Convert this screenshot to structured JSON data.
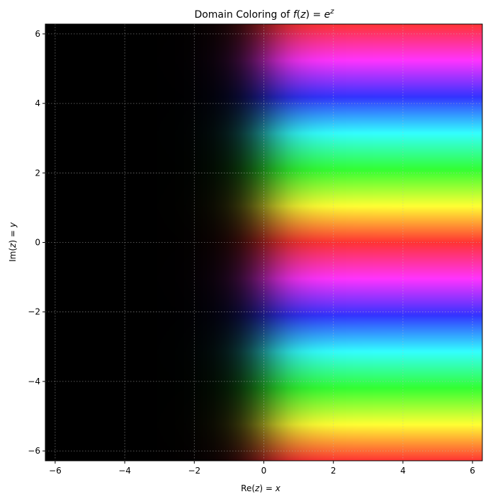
{
  "chart_data": {
    "type": "heatmap",
    "title": {
      "prefix": "Domain Coloring of ",
      "f": "f",
      "open": "(",
      "z": "z",
      "eq": ") = ",
      "e": "e",
      "sup": "z"
    },
    "xlabel": {
      "prefix": "Re(",
      "z": "z",
      "mid": ") = ",
      "var": "x"
    },
    "ylabel": {
      "prefix": "Im(",
      "z": "z",
      "mid": ") = ",
      "var": "y"
    },
    "function": "exp(z)",
    "coloring": {
      "hue": "arg(f(z))",
      "brightness": "increases with |f(z)|"
    },
    "xlim": [
      -6.283,
      6.283
    ],
    "ylim": [
      -6.283,
      6.283
    ],
    "xticks": [
      -6,
      -4,
      -2,
      0,
      2,
      4,
      6
    ],
    "yticks": [
      -6,
      -4,
      -2,
      0,
      2,
      4,
      6
    ],
    "grid": true,
    "grid_style": "dotted",
    "colors": {
      "grid": "#bbbbbb",
      "axes": "#000000",
      "background": "#ffffff"
    }
  }
}
